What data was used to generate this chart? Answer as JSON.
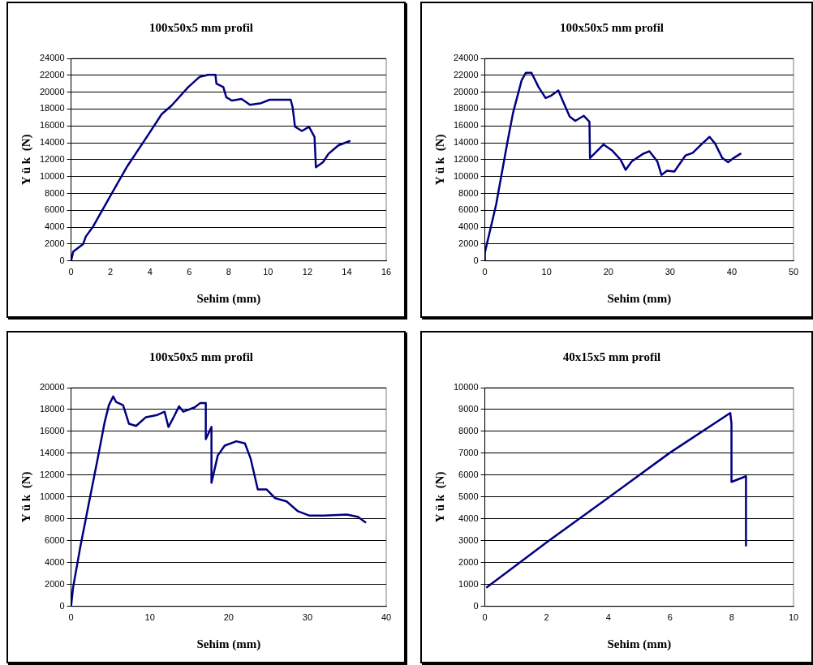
{
  "chart_data": [
    {
      "type": "line",
      "title": "100x50x5 mm profil",
      "xlabel": "Sehim (mm)",
      "ylabel": "Y ü k  (N)",
      "color": "#000080",
      "marker": "none",
      "line_style": "solid",
      "grid": "y",
      "legend": false,
      "x": [
        0,
        0.11,
        0.61,
        0.75,
        1.11,
        1.97,
        2.82,
        3.96,
        4.6,
        5.1,
        5.95,
        6.52,
        6.95,
        7.33,
        7.38,
        7.73,
        7.88,
        8.16,
        8.66,
        9.08,
        9.65,
        10.08,
        11.15,
        11.25,
        11.37,
        11.72,
        12.08,
        12.36,
        12.43,
        12.79,
        13.07,
        13.57,
        14.14
      ],
      "values": [
        0,
        1100,
        2000,
        2900,
        4050,
        7600,
        11100,
        15100,
        17400,
        18400,
        20600,
        21800,
        22050,
        22050,
        21000,
        20600,
        19400,
        19000,
        19200,
        18500,
        18700,
        19100,
        19100,
        18200,
        15900,
        15400,
        15900,
        14700,
        11100,
        11700,
        12700,
        13700,
        14200
      ],
      "xlim": [
        0,
        16
      ],
      "xticks": [
        0,
        2,
        4,
        6,
        8,
        10,
        12,
        14,
        16
      ],
      "ylim": [
        0,
        24000
      ],
      "yticks": [
        0,
        2000,
        4000,
        6000,
        8000,
        10000,
        12000,
        14000,
        16000,
        18000,
        20000,
        22000,
        24000
      ]
    },
    {
      "type": "line",
      "title": "100x50x5 mm profil",
      "xlabel": "Sehim (mm)",
      "ylabel": "Y ü k  (N)",
      "color": "#000080",
      "marker": "none",
      "line_style": "solid",
      "grid": "y",
      "legend": false,
      "x": [
        0,
        0,
        1.83,
        3.66,
        4.58,
        5.95,
        6.64,
        7.55,
        8.7,
        9.84,
        10.76,
        11.9,
        12.6,
        13.74,
        14.65,
        16.03,
        16.94,
        17.03,
        19.23,
        20.6,
        21.98,
        22.8,
        23.8,
        25.64,
        26.65,
        27.93,
        28.6,
        29.5,
        30.7,
        32.5,
        33.65,
        35.2,
        36.4,
        37.3,
        38.46,
        39.4,
        40.3,
        41.4
      ],
      "values": [
        0,
        1000,
        6700,
        14100,
        17600,
        21400,
        22300,
        22300,
        20600,
        19300,
        19600,
        20200,
        19000,
        17100,
        16600,
        17200,
        16500,
        12200,
        13800,
        13100,
        12000,
        10800,
        11800,
        12700,
        13000,
        11800,
        10200,
        10700,
        10600,
        12500,
        12800,
        13900,
        14700,
        13900,
        12200,
        11700,
        12200,
        12700
      ],
      "xlim": [
        0,
        50
      ],
      "xticks": [
        0,
        10,
        20,
        30,
        40,
        50
      ],
      "ylim": [
        0,
        24000
      ],
      "yticks": [
        0,
        2000,
        4000,
        6000,
        8000,
        10000,
        12000,
        14000,
        16000,
        18000,
        20000,
        22000,
        24000
      ]
    },
    {
      "type": "line",
      "title": "100x50x5 mm profil",
      "xlabel": "Sehim (mm)",
      "ylabel": "Y ü k  (N)",
      "color": "#000080",
      "marker": "none",
      "line_style": "solid",
      "grid": "y",
      "legend": false,
      "x": [
        0,
        0.25,
        1.16,
        2.25,
        3.35,
        4.25,
        4.8,
        5.35,
        5.7,
        6.6,
        7.35,
        8.25,
        9.5,
        10.95,
        11.87,
        12.36,
        13.16,
        13.7,
        14.25,
        15.7,
        16.4,
        17.1,
        17.1,
        17.82,
        17.82,
        18.62,
        19.5,
        20.98,
        22.07,
        22.8,
        23.7,
        24.8,
        25.9,
        27.35,
        28.8,
        30.27,
        32.07,
        35,
        36.4,
        37.35
      ],
      "values": [
        0,
        1700,
        5400,
        9400,
        13400,
        16800,
        18400,
        19200,
        18700,
        18400,
        16700,
        16500,
        17300,
        17500,
        17800,
        16400,
        17500,
        18300,
        17800,
        18200,
        18600,
        18600,
        15300,
        16400,
        11300,
        13800,
        14700,
        15100,
        14900,
        13500,
        10700,
        10700,
        9900,
        9600,
        8700,
        8300,
        8300,
        8400,
        8200,
        7700
      ],
      "xlim": [
        0,
        40
      ],
      "xticks": [
        0,
        10,
        20,
        30,
        40
      ],
      "ylim": [
        0,
        20000
      ],
      "yticks": [
        0,
        2000,
        4000,
        6000,
        8000,
        10000,
        12000,
        14000,
        16000,
        18000,
        20000
      ]
    },
    {
      "type": "line",
      "title": "40x15x5 mm profil",
      "xlabel": "Sehim (mm)",
      "ylabel": "Y ü k  (N)",
      "color": "#000080",
      "marker": "none",
      "line_style": "solid",
      "grid": "y",
      "legend": false,
      "x": [
        0.07,
        2.01,
        3.98,
        6.0,
        7.95,
        7.99,
        7.99,
        8.46,
        8.46
      ],
      "values": [
        880,
        2940,
        4950,
        7030,
        8840,
        8350,
        5690,
        5950,
        2780
      ],
      "xlim": [
        0,
        10
      ],
      "xticks": [
        0,
        2,
        4,
        6,
        8,
        10
      ],
      "ylim": [
        0,
        10000
      ],
      "yticks": [
        0,
        1000,
        2000,
        3000,
        4000,
        5000,
        6000,
        7000,
        8000,
        9000,
        10000
      ]
    }
  ]
}
